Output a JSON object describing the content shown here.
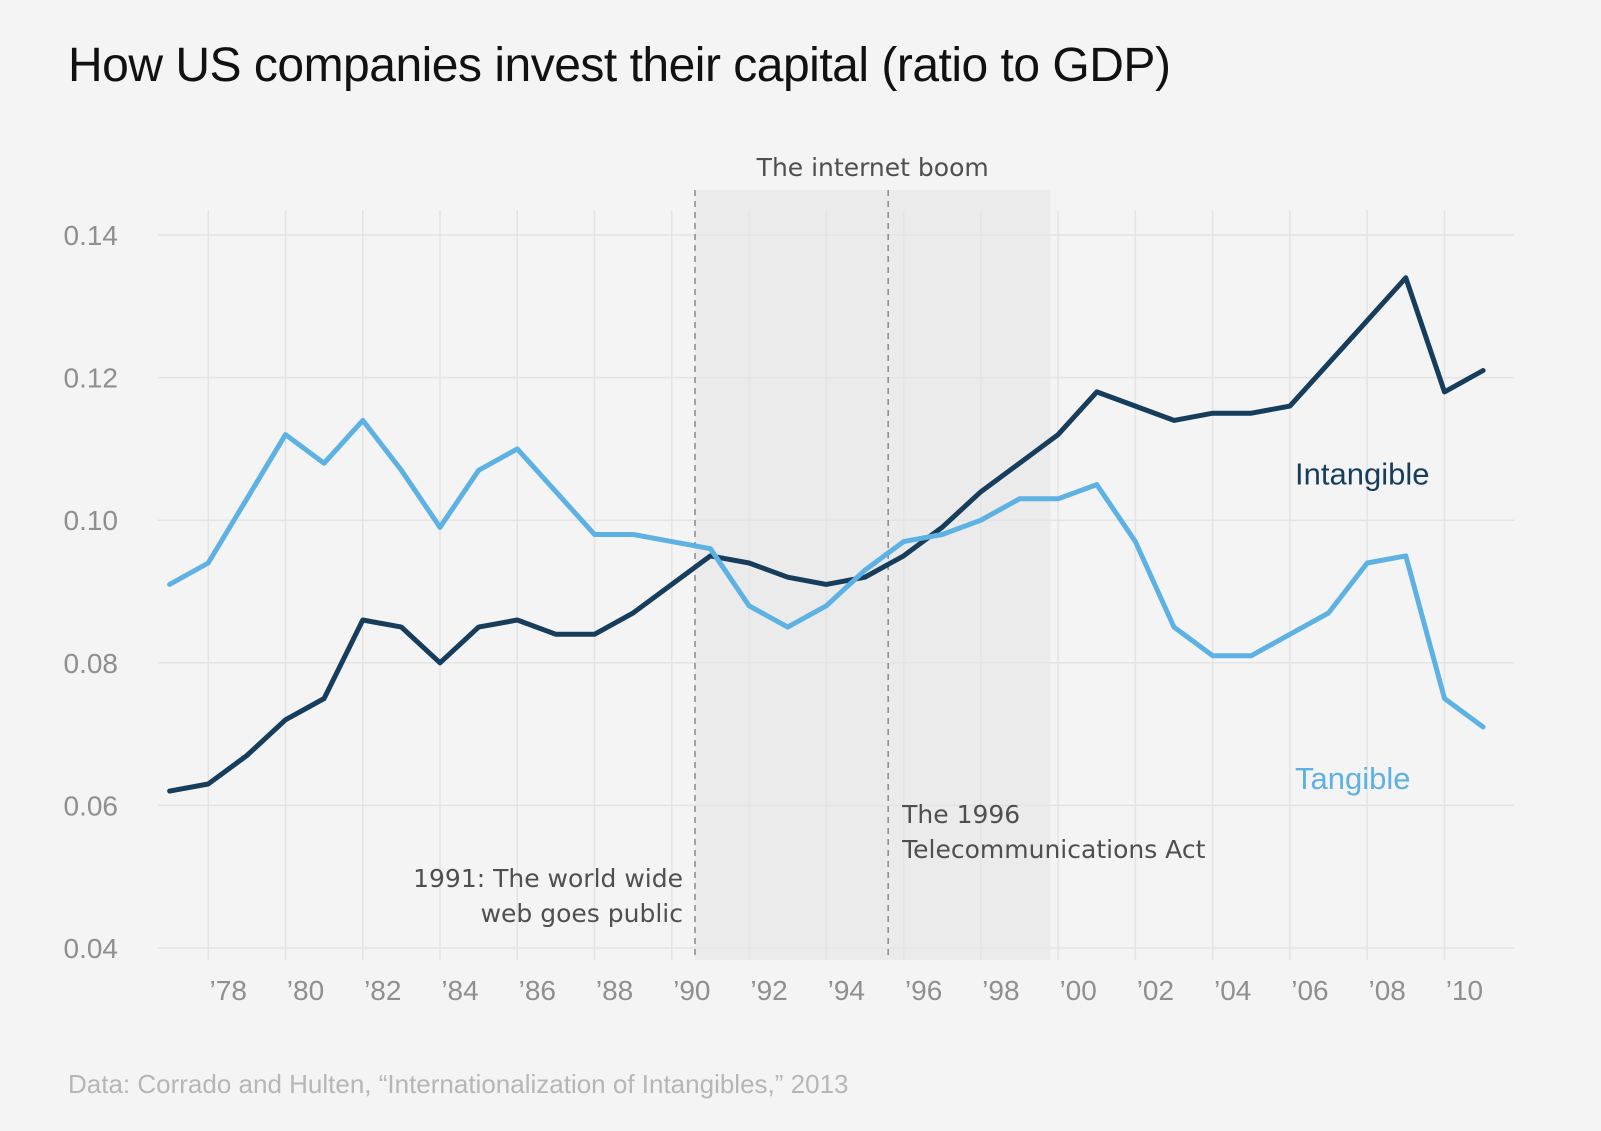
{
  "colors": {
    "background": "#f4f4f4",
    "grid": "#e4e4e4",
    "boom_shade": "#ebebeb",
    "intangible": "#173d5c",
    "tangible": "#5db2e3",
    "tick_text": "#8f8f8f",
    "annotation_text": "#4f4f4f",
    "source_text": "#b6b6b6"
  },
  "chart_data": {
    "type": "line",
    "title": "How US companies invest their capital (ratio to GDP)",
    "xlabel": "",
    "ylabel": "",
    "x": [
      1977,
      1978,
      1979,
      1980,
      1981,
      1982,
      1983,
      1984,
      1985,
      1986,
      1987,
      1988,
      1989,
      1990,
      1991,
      1992,
      1993,
      1994,
      1995,
      1996,
      1997,
      1998,
      1999,
      2000,
      2001,
      2002,
      2003,
      2004,
      2005,
      2006,
      2007,
      2008,
      2009,
      2010,
      2011
    ],
    "xlim": [
      1976.7,
      2011.8
    ],
    "ylim": [
      0.04,
      0.14
    ],
    "yticks": [
      0.04,
      0.06,
      0.08,
      0.1,
      0.12,
      0.14
    ],
    "ytick_labels": [
      "0.04",
      "0.06",
      "0.08",
      "0.10",
      "0.12",
      "0.14"
    ],
    "xticks": [
      1978,
      1980,
      1982,
      1984,
      1986,
      1988,
      1990,
      1992,
      1994,
      1996,
      1998,
      2000,
      2002,
      2004,
      2006,
      2008,
      2010
    ],
    "xtick_labels": [
      "’78",
      "’80",
      "’82",
      "’84",
      "’86",
      "’88",
      "’90",
      "’92",
      "’94",
      "’96",
      "’98",
      "’00",
      "’02",
      "’04",
      "’06",
      "’08",
      "’10"
    ],
    "grid": true,
    "series": [
      {
        "name": "Intangible",
        "color": "#173d5c",
        "label_position": "above right end",
        "values": [
          0.062,
          0.063,
          0.067,
          0.072,
          0.075,
          0.086,
          0.085,
          0.08,
          0.085,
          0.086,
          0.084,
          0.084,
          0.087,
          0.091,
          0.095,
          0.094,
          0.092,
          0.091,
          0.092,
          0.095,
          0.099,
          0.104,
          0.108,
          0.112,
          0.118,
          0.116,
          0.114,
          0.115,
          0.115,
          0.116,
          0.122,
          0.128,
          0.134,
          0.118,
          0.121
        ]
      },
      {
        "name": "Tangible",
        "color": "#5db2e3",
        "label_position": "below right end",
        "values": [
          0.091,
          0.094,
          0.103,
          0.112,
          0.108,
          0.114,
          0.107,
          0.099,
          0.107,
          0.11,
          0.104,
          0.098,
          0.098,
          0.097,
          0.096,
          0.088,
          0.085,
          0.088,
          0.093,
          0.097,
          0.098,
          0.1,
          0.103,
          0.103,
          0.105,
          0.097,
          0.085,
          0.081,
          0.081,
          0.084,
          0.087,
          0.094,
          0.095,
          0.075,
          0.071
        ]
      }
    ],
    "shaded_region": {
      "label": "The internet boom",
      "x_start": 1990.6,
      "x_end": 1999.8
    },
    "annotations": [
      {
        "x": 1990.6,
        "lines": [
          "1991: The world wide",
          "web goes public"
        ],
        "side": "left of line"
      },
      {
        "x": 1995.6,
        "lines": [
          "The 1996",
          "Telecommunications Act"
        ],
        "side": "right of line"
      }
    ],
    "source": "Data: Corrado and Hulten, “Internationalization of Intangibles,” 2013"
  }
}
